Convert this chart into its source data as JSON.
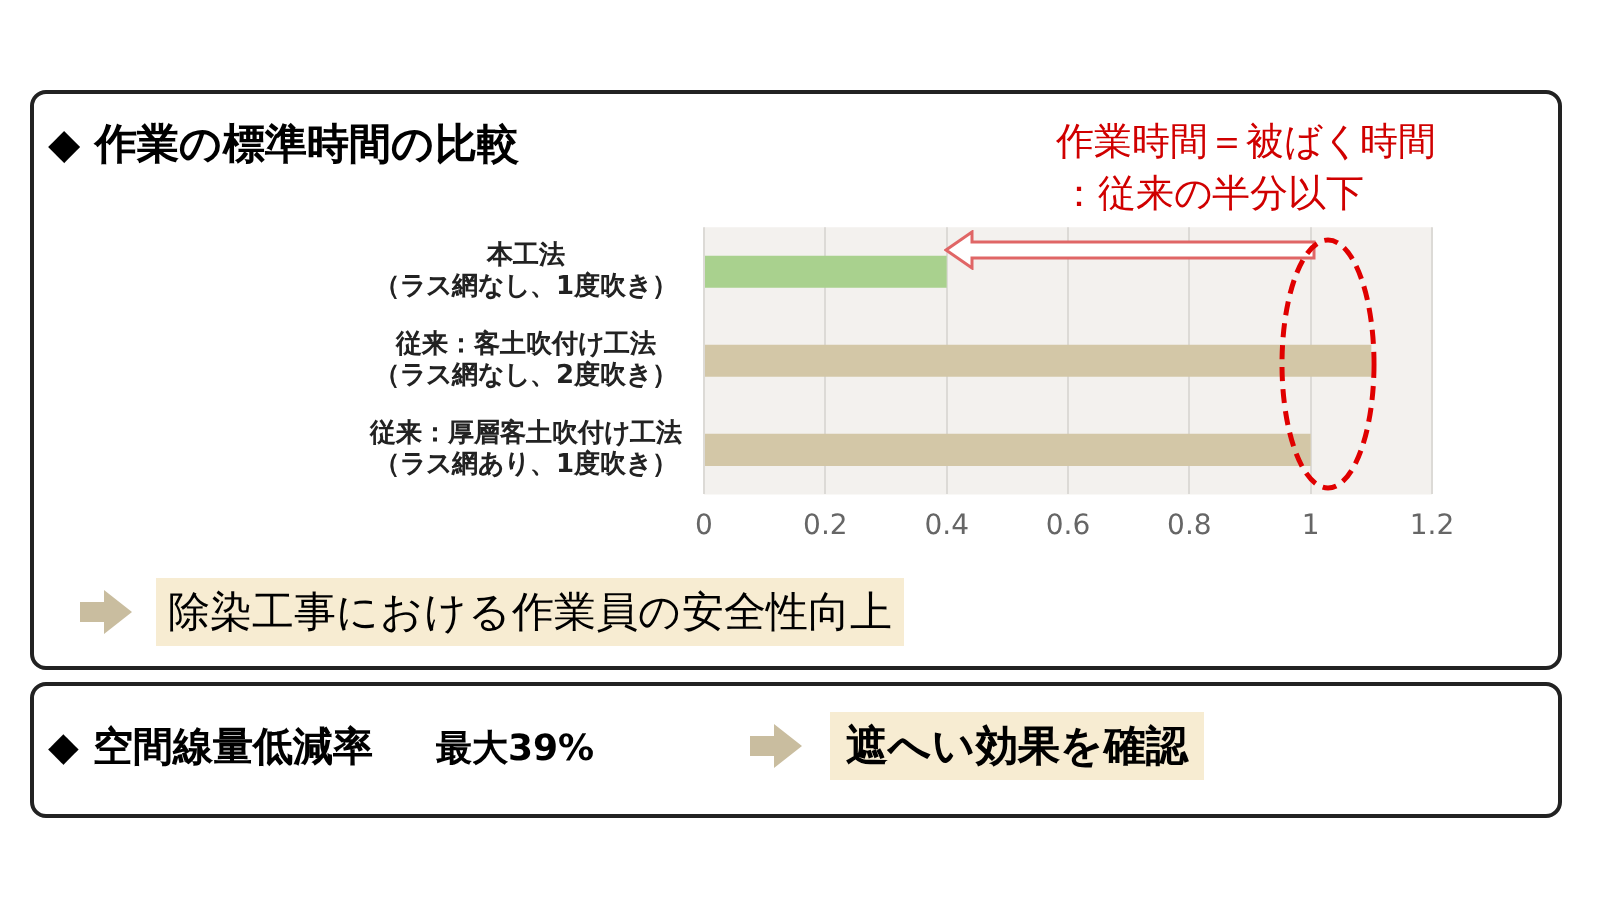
{
  "chart_data": {
    "type": "bar",
    "orientation": "horizontal",
    "title": "◆ 作業の標準時間の比較",
    "categories": [
      "本工法（ラス網なし、1度吹き）",
      "従来：客土吹付け工法（ラス網なし、2度吹き）",
      "従来：厚層客土吹付け工法（ラス網あり、1度吹き）"
    ],
    "values": [
      0.4,
      1.1,
      1.0
    ],
    "colors": [
      "#a9d18e",
      "#d3c7a7",
      "#d3c7a7"
    ],
    "xlim": [
      0,
      1.2
    ],
    "xticks": [
      0,
      0.2,
      0.4,
      0.6,
      0.8,
      1,
      1.2
    ],
    "grid": "x",
    "annotations": [
      "作業時間＝被ばく時間",
      "：従来の半分以下",
      "除染工事における作業員の安全性向上",
      "◆ 空間線量低減率",
      "最大39%",
      "遮へい効果を確認"
    ]
  }
}
